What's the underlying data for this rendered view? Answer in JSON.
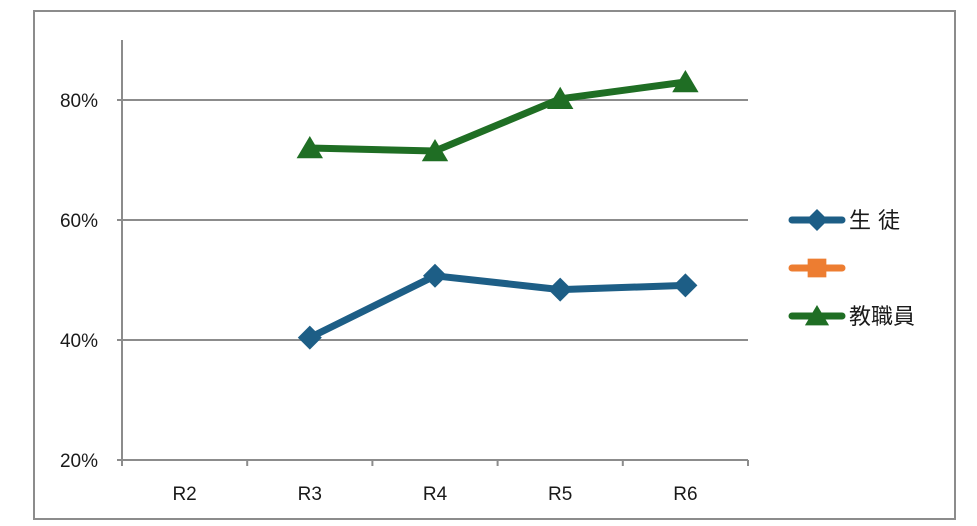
{
  "chart_data": {
    "type": "line",
    "categories": [
      "R2",
      "R3",
      "R4",
      "R5",
      "R6"
    ],
    "y_ticks": [
      0.2,
      0.4,
      0.6,
      0.8
    ],
    "y_tick_labels": [
      "20%",
      "40%",
      "60%",
      "80%"
    ],
    "ylim": [
      0.2,
      0.9
    ],
    "grid": true,
    "legend_position": "right",
    "series": [
      {
        "name": "生 徒",
        "color": "#1d5e86",
        "marker": "diamond",
        "values": [
          null,
          0.404,
          0.507,
          0.484,
          0.491
        ]
      },
      {
        "name": "",
        "color": "#ed7d31",
        "marker": "square",
        "values": [
          null,
          null,
          null,
          null,
          null
        ]
      },
      {
        "name": "教職員",
        "color": "#1f6e24",
        "marker": "triangle",
        "values": [
          null,
          0.72,
          0.715,
          0.802,
          0.83
        ]
      }
    ]
  }
}
